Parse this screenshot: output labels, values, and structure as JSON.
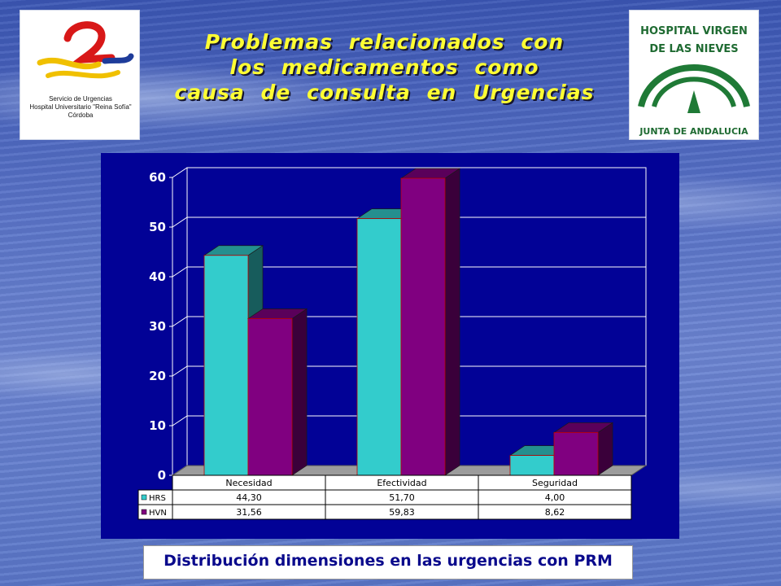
{
  "title_lines": [
    "Problemas relacionados con",
    "los medicamentos como",
    "causa de consulta en Urgencias"
  ],
  "logo_left": {
    "lines": [
      "Servicio de Urgencias",
      "Hospital Universitario \"Reina Sofía\"",
      "Córdoba"
    ]
  },
  "logo_right": {
    "line1": "HOSPITAL VIRGEN",
    "line2": "DE LAS NIEVES",
    "line3": "JUNTA DE ANDALUCIA"
  },
  "caption": "Distribución dimensiones en las urgencias con PRM",
  "colors": {
    "series_hrs": "#33cccc",
    "series_hvn": "#800080",
    "panel": "#020296",
    "title": "#ffff33"
  },
  "chart_data": {
    "type": "bar",
    "categories": [
      "Necesidad",
      "Efectividad",
      "Seguridad"
    ],
    "series": [
      {
        "name": "HRS",
        "values": [
          44.3,
          51.7,
          4.0
        ],
        "labels": [
          "44,30",
          "51,70",
          "4,00"
        ]
      },
      {
        "name": "HVN",
        "values": [
          31.56,
          59.83,
          8.62
        ],
        "labels": [
          "31,56",
          "59,83",
          "8,62"
        ]
      }
    ],
    "ylim": [
      0,
      60
    ],
    "yticks": [
      0,
      10,
      20,
      30,
      40,
      50,
      60
    ],
    "grid": true,
    "legend": "data table below chart"
  }
}
